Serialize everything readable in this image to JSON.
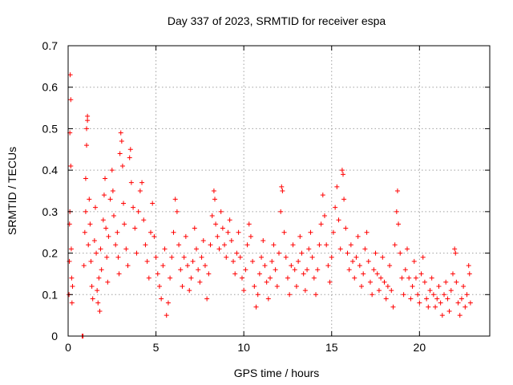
{
  "chart_data": {
    "type": "scatter",
    "title": "Day 337 of 2023, SRMTID for receiver espa",
    "xlabel": "GPS time / hours",
    "ylabel": "SRMTID / TECUs",
    "xlim": [
      0,
      24
    ],
    "ylim": [
      0,
      0.7
    ],
    "x_ticks": [
      {
        "value": 0,
        "label": "0"
      },
      {
        "value": 5,
        "label": "5"
      },
      {
        "value": 10,
        "label": "10"
      },
      {
        "value": 15,
        "label": "15"
      },
      {
        "value": 20,
        "label": "20"
      }
    ],
    "y_ticks": [
      {
        "value": 0,
        "label": "0"
      },
      {
        "value": 0.1,
        "label": "0.1"
      },
      {
        "value": 0.2,
        "label": "0.2"
      },
      {
        "value": 0.3,
        "label": "0.3"
      },
      {
        "value": 0.4,
        "label": "0.4"
      },
      {
        "value": 0.5,
        "label": "0.5"
      },
      {
        "value": 0.6,
        "label": "0.6"
      },
      {
        "value": 0.7,
        "label": "0.7"
      }
    ],
    "grid": true,
    "marker": "+",
    "marker_color": "#ff0000",
    "series": [
      {
        "name": "espa",
        "points": [
          [
            0.05,
            0.1
          ],
          [
            0.07,
            0.18
          ],
          [
            0.08,
            0.27
          ],
          [
            0.1,
            0.3
          ],
          [
            0.1,
            0.49
          ],
          [
            0.12,
            0.63
          ],
          [
            0.15,
            0.57
          ],
          [
            0.15,
            0.41
          ],
          [
            0.18,
            0.21
          ],
          [
            0.2,
            0.14
          ],
          [
            0.22,
            0.08
          ],
          [
            0.25,
            0.12
          ],
          [
            0.8,
            0.0
          ],
          [
            0.85,
            0.0
          ],
          [
            0.9,
            0.17
          ],
          [
            0.95,
            0.25
          ],
          [
            1.0,
            0.3
          ],
          [
            1.0,
            0.38
          ],
          [
            1.05,
            0.46
          ],
          [
            1.05,
            0.5
          ],
          [
            1.1,
            0.53
          ],
          [
            1.1,
            0.52
          ],
          [
            1.15,
            0.22
          ],
          [
            1.2,
            0.33
          ],
          [
            1.25,
            0.27
          ],
          [
            1.3,
            0.18
          ],
          [
            1.35,
            0.12
          ],
          [
            1.4,
            0.09
          ],
          [
            1.5,
            0.23
          ],
          [
            1.55,
            0.31
          ],
          [
            1.6,
            0.2
          ],
          [
            1.65,
            0.11
          ],
          [
            1.7,
            0.08
          ],
          [
            1.75,
            0.14
          ],
          [
            1.8,
            0.06
          ],
          [
            1.85,
            0.21
          ],
          [
            1.9,
            0.16
          ],
          [
            2.0,
            0.28
          ],
          [
            2.05,
            0.34
          ],
          [
            2.1,
            0.38
          ],
          [
            2.15,
            0.26
          ],
          [
            2.2,
            0.19
          ],
          [
            2.25,
            0.13
          ],
          [
            2.3,
            0.24
          ],
          [
            2.4,
            0.33
          ],
          [
            2.5,
            0.4
          ],
          [
            2.55,
            0.35
          ],
          [
            2.6,
            0.29
          ],
          [
            2.7,
            0.22
          ],
          [
            2.8,
            0.25
          ],
          [
            2.85,
            0.19
          ],
          [
            2.9,
            0.15
          ],
          [
            2.95,
            0.44
          ],
          [
            3.0,
            0.49
          ],
          [
            3.05,
            0.47
          ],
          [
            3.1,
            0.41
          ],
          [
            3.15,
            0.32
          ],
          [
            3.2,
            0.27
          ],
          [
            3.3,
            0.21
          ],
          [
            3.4,
            0.17
          ],
          [
            3.5,
            0.43
          ],
          [
            3.55,
            0.45
          ],
          [
            3.6,
            0.37
          ],
          [
            3.7,
            0.31
          ],
          [
            3.8,
            0.26
          ],
          [
            3.9,
            0.2
          ],
          [
            4.0,
            0.3
          ],
          [
            4.1,
            0.35
          ],
          [
            4.2,
            0.37
          ],
          [
            4.3,
            0.28
          ],
          [
            4.4,
            0.22
          ],
          [
            4.5,
            0.18
          ],
          [
            4.6,
            0.14
          ],
          [
            4.7,
            0.25
          ],
          [
            4.8,
            0.32
          ],
          [
            4.9,
            0.24
          ],
          [
            5.0,
            0.19
          ],
          [
            5.1,
            0.15
          ],
          [
            5.2,
            0.12
          ],
          [
            5.3,
            0.09
          ],
          [
            5.4,
            0.17
          ],
          [
            5.5,
            0.21
          ],
          [
            5.6,
            0.05
          ],
          [
            5.7,
            0.08
          ],
          [
            5.8,
            0.14
          ],
          [
            5.9,
            0.19
          ],
          [
            6.0,
            0.25
          ],
          [
            6.1,
            0.33
          ],
          [
            6.2,
            0.3
          ],
          [
            6.3,
            0.22
          ],
          [
            6.4,
            0.16
          ],
          [
            6.5,
            0.12
          ],
          [
            6.6,
            0.19
          ],
          [
            6.7,
            0.24
          ],
          [
            6.8,
            0.17
          ],
          [
            6.9,
            0.11
          ],
          [
            7.0,
            0.14
          ],
          [
            7.1,
            0.18
          ],
          [
            7.2,
            0.26
          ],
          [
            7.3,
            0.21
          ],
          [
            7.4,
            0.16
          ],
          [
            7.5,
            0.13
          ],
          [
            7.6,
            0.19
          ],
          [
            7.7,
            0.23
          ],
          [
            7.8,
            0.17
          ],
          [
            7.9,
            0.09
          ],
          [
            8.0,
            0.15
          ],
          [
            8.1,
            0.22
          ],
          [
            8.2,
            0.29
          ],
          [
            8.3,
            0.35
          ],
          [
            8.35,
            0.33
          ],
          [
            8.4,
            0.27
          ],
          [
            8.5,
            0.24
          ],
          [
            8.6,
            0.21
          ],
          [
            8.7,
            0.3
          ],
          [
            8.8,
            0.26
          ],
          [
            8.9,
            0.22
          ],
          [
            9.0,
            0.19
          ],
          [
            9.1,
            0.25
          ],
          [
            9.2,
            0.28
          ],
          [
            9.3,
            0.23
          ],
          [
            9.4,
            0.18
          ],
          [
            9.5,
            0.15
          ],
          [
            9.6,
            0.2
          ],
          [
            9.7,
            0.25
          ],
          [
            9.8,
            0.19
          ],
          [
            9.9,
            0.14
          ],
          [
            10.0,
            0.11
          ],
          [
            10.1,
            0.16
          ],
          [
            10.2,
            0.22
          ],
          [
            10.3,
            0.27
          ],
          [
            10.4,
            0.24
          ],
          [
            10.5,
            0.18
          ],
          [
            10.6,
            0.12
          ],
          [
            10.7,
            0.07
          ],
          [
            10.8,
            0.1
          ],
          [
            10.9,
            0.15
          ],
          [
            11.0,
            0.19
          ],
          [
            11.1,
            0.23
          ],
          [
            11.2,
            0.17
          ],
          [
            11.3,
            0.13
          ],
          [
            11.4,
            0.09
          ],
          [
            11.5,
            0.14
          ],
          [
            11.6,
            0.18
          ],
          [
            11.7,
            0.22
          ],
          [
            11.8,
            0.16
          ],
          [
            11.9,
            0.12
          ],
          [
            12.0,
            0.2
          ],
          [
            12.1,
            0.3
          ],
          [
            12.15,
            0.36
          ],
          [
            12.2,
            0.35
          ],
          [
            12.3,
            0.25
          ],
          [
            12.4,
            0.19
          ],
          [
            12.5,
            0.14
          ],
          [
            12.6,
            0.1
          ],
          [
            12.7,
            0.17
          ],
          [
            12.8,
            0.22
          ],
          [
            12.9,
            0.16
          ],
          [
            13.0,
            0.12
          ],
          [
            13.1,
            0.18
          ],
          [
            13.2,
            0.24
          ],
          [
            13.3,
            0.2
          ],
          [
            13.4,
            0.15
          ],
          [
            13.5,
            0.11
          ],
          [
            13.6,
            0.16
          ],
          [
            13.7,
            0.21
          ],
          [
            13.8,
            0.25
          ],
          [
            13.9,
            0.19
          ],
          [
            14.0,
            0.14
          ],
          [
            14.1,
            0.1
          ],
          [
            14.2,
            0.16
          ],
          [
            14.3,
            0.22
          ],
          [
            14.4,
            0.27
          ],
          [
            14.5,
            0.34
          ],
          [
            14.6,
            0.29
          ],
          [
            14.7,
            0.22
          ],
          [
            14.8,
            0.17
          ],
          [
            14.9,
            0.13
          ],
          [
            15.0,
            0.19
          ],
          [
            15.1,
            0.25
          ],
          [
            15.2,
            0.31
          ],
          [
            15.3,
            0.36
          ],
          [
            15.4,
            0.28
          ],
          [
            15.5,
            0.21
          ],
          [
            15.6,
            0.4
          ],
          [
            15.65,
            0.39
          ],
          [
            15.7,
            0.33
          ],
          [
            15.8,
            0.26
          ],
          [
            15.9,
            0.2
          ],
          [
            16.0,
            0.16
          ],
          [
            16.1,
            0.22
          ],
          [
            16.2,
            0.18
          ],
          [
            16.3,
            0.14
          ],
          [
            16.4,
            0.19
          ],
          [
            16.5,
            0.24
          ],
          [
            16.6,
            0.17
          ],
          [
            16.7,
            0.12
          ],
          [
            16.8,
            0.15
          ],
          [
            16.9,
            0.21
          ],
          [
            17.0,
            0.25
          ],
          [
            17.1,
            0.18
          ],
          [
            17.2,
            0.13
          ],
          [
            17.3,
            0.1
          ],
          [
            17.4,
            0.16
          ],
          [
            17.5,
            0.2
          ],
          [
            17.6,
            0.15
          ],
          [
            17.7,
            0.11
          ],
          [
            17.8,
            0.14
          ],
          [
            17.9,
            0.19
          ],
          [
            18.0,
            0.13
          ],
          [
            18.1,
            0.09
          ],
          [
            18.2,
            0.12
          ],
          [
            18.3,
            0.17
          ],
          [
            18.4,
            0.11
          ],
          [
            18.5,
            0.07
          ],
          [
            18.6,
            0.22
          ],
          [
            18.7,
            0.3
          ],
          [
            18.75,
            0.35
          ],
          [
            18.8,
            0.27
          ],
          [
            18.9,
            0.2
          ],
          [
            19.0,
            0.14
          ],
          [
            19.1,
            0.1
          ],
          [
            19.2,
            0.16
          ],
          [
            19.3,
            0.21
          ],
          [
            19.4,
            0.14
          ],
          [
            19.5,
            0.09
          ],
          [
            19.6,
            0.12
          ],
          [
            19.7,
            0.18
          ],
          [
            19.8,
            0.14
          ],
          [
            19.9,
            0.1
          ],
          [
            20.0,
            0.08
          ],
          [
            20.1,
            0.15
          ],
          [
            20.2,
            0.19
          ],
          [
            20.3,
            0.13
          ],
          [
            20.4,
            0.09
          ],
          [
            20.5,
            0.07
          ],
          [
            20.6,
            0.11
          ],
          [
            20.7,
            0.14
          ],
          [
            20.8,
            0.1
          ],
          [
            20.9,
            0.07
          ],
          [
            21.0,
            0.09
          ],
          [
            21.1,
            0.12
          ],
          [
            21.2,
            0.08
          ],
          [
            21.3,
            0.05
          ],
          [
            21.4,
            0.1
          ],
          [
            21.5,
            0.13
          ],
          [
            21.6,
            0.09
          ],
          [
            21.7,
            0.06
          ],
          [
            21.8,
            0.11
          ],
          [
            21.9,
            0.15
          ],
          [
            22.0,
            0.21
          ],
          [
            22.05,
            0.2
          ],
          [
            22.1,
            0.13
          ],
          [
            22.2,
            0.08
          ],
          [
            22.3,
            0.05
          ],
          [
            22.4,
            0.09
          ],
          [
            22.5,
            0.12
          ],
          [
            22.6,
            0.07
          ],
          [
            22.7,
            0.1
          ],
          [
            22.8,
            0.17
          ],
          [
            22.85,
            0.15
          ],
          [
            22.9,
            0.08
          ]
        ]
      }
    ]
  }
}
